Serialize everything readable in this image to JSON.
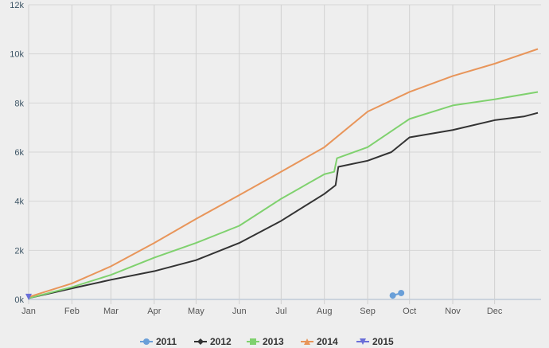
{
  "chart_data": {
    "type": "line",
    "x_unit": "day of year",
    "x_ticks": [
      "Jan",
      "Feb",
      "Mar",
      "Apr",
      "May",
      "Jun",
      "Jul",
      "Aug",
      "Sep",
      "Oct",
      "Nov",
      "Dec"
    ],
    "y_ticks": [
      "0k",
      "2k",
      "4k",
      "6k",
      "8k",
      "10k",
      "12k"
    ],
    "ylim": [
      0,
      12000
    ],
    "grid": true,
    "legend": "bottom",
    "series": [
      {
        "name": "2011",
        "color": "#6a9fd8",
        "marker": "circle",
        "points": [
          [
            261,
            160
          ],
          [
            267,
            260
          ]
        ]
      },
      {
        "name": "2012",
        "color": "#333333",
        "marker": "diamond",
        "points": [
          [
            0,
            50
          ],
          [
            31,
            450
          ],
          [
            59,
            800
          ],
          [
            90,
            1150
          ],
          [
            120,
            1600
          ],
          [
            151,
            2300
          ],
          [
            181,
            3200
          ],
          [
            212,
            4300
          ],
          [
            220,
            4650
          ],
          [
            222,
            5400
          ],
          [
            243,
            5650
          ],
          [
            260,
            6000
          ],
          [
            273,
            6600
          ],
          [
            304,
            6900
          ],
          [
            334,
            7300
          ],
          [
            355,
            7450
          ],
          [
            365,
            7600
          ]
        ]
      },
      {
        "name": "2013",
        "color": "#7fd16e",
        "marker": "square",
        "points": [
          [
            0,
            50
          ],
          [
            31,
            500
          ],
          [
            59,
            1000
          ],
          [
            90,
            1700
          ],
          [
            120,
            2300
          ],
          [
            151,
            3000
          ],
          [
            181,
            4100
          ],
          [
            212,
            5100
          ],
          [
            219,
            5200
          ],
          [
            221,
            5750
          ],
          [
            243,
            6200
          ],
          [
            273,
            7350
          ],
          [
            304,
            7900
          ],
          [
            334,
            8150
          ],
          [
            365,
            8450
          ]
        ]
      },
      {
        "name": "2014",
        "color": "#e8955a",
        "marker": "triangle",
        "points": [
          [
            0,
            100
          ],
          [
            31,
            650
          ],
          [
            59,
            1350
          ],
          [
            90,
            2300
          ],
          [
            120,
            3280
          ],
          [
            151,
            4250
          ],
          [
            181,
            5200
          ],
          [
            212,
            6200
          ],
          [
            243,
            7650
          ],
          [
            273,
            8450
          ],
          [
            304,
            9100
          ],
          [
            334,
            9600
          ],
          [
            365,
            10200
          ]
        ]
      },
      {
        "name": "2015",
        "color": "#6a6ed8",
        "marker": "triangle-down",
        "points": [
          [
            0,
            100
          ]
        ]
      }
    ]
  }
}
